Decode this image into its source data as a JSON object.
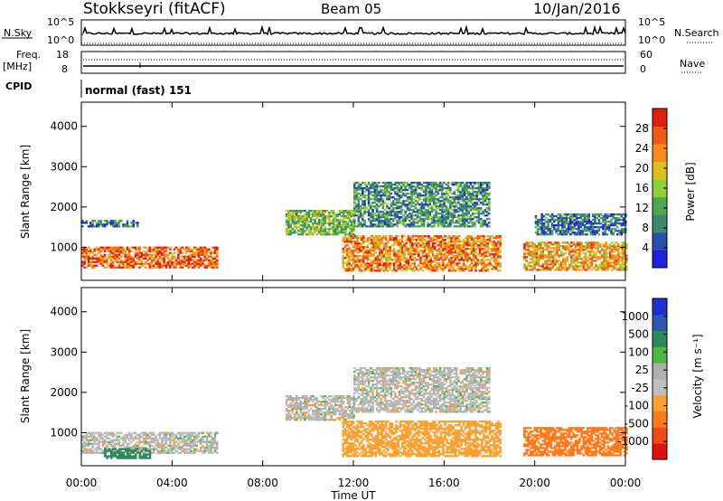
{
  "header": {
    "station": "Stokkseyri (fitACF)",
    "beam": "Beam 05",
    "date": "10/Jan/2016"
  },
  "top_panels": {
    "nsky_label": "N.Sky",
    "nsearch_label": "N.Search",
    "noise_tick_high": "10^5",
    "noise_tick_low": "10^0",
    "freq_label_1": "Freq.",
    "freq_label_2": "[MHz]",
    "freq_tick_high": "18",
    "freq_tick_low": "8",
    "nave_label": "Nave",
    "nave_tick_high": "60",
    "nave_tick_low": "0",
    "cpid_label": "CPID",
    "cpid_value": "normal (fast) 151"
  },
  "colors": {
    "power": [
      "#1f1fe0",
      "#2a4fb0",
      "#3f8a6a",
      "#4fa84f",
      "#8ecf3a",
      "#e0c020",
      "#ff8c1a",
      "#f05a14",
      "#e01e10"
    ],
    "velocity": [
      "#e01010",
      "#f04a14",
      "#ff7a1a",
      "#ffa030",
      "#bebebe",
      "#b0b0b0",
      "#4fb840",
      "#2e8a5a",
      "#2a5ab0",
      "#1f2fd0"
    ]
  },
  "chart_data": [
    {
      "type": "heatmap",
      "title": "Power",
      "ylabel": "Slant Range [km]",
      "xlabel": "",
      "x_ticks": [
        "00:00",
        "04:00",
        "08:00",
        "12:00",
        "16:00",
        "20:00",
        "00:00"
      ],
      "y_ticks": [
        1000,
        2000,
        3000,
        4000
      ],
      "ylim": [
        180,
        4600
      ],
      "xlim_hours": [
        0,
        24
      ],
      "colorbar": {
        "label": "Power [dB]",
        "ticks": [
          4,
          8,
          12,
          16,
          20,
          24,
          28
        ],
        "range": [
          0,
          32
        ]
      },
      "regions": [
        {
          "t": [
            0.0,
            6.0
          ],
          "r": [
            480,
            1020
          ],
          "level": 26
        },
        {
          "t": [
            0.0,
            2.5
          ],
          "r": [
            1500,
            1650
          ],
          "level": 8
        },
        {
          "t": [
            9.0,
            12.0
          ],
          "r": [
            1300,
            1900
          ],
          "level": 14
        },
        {
          "t": [
            11.5,
            18.5
          ],
          "r": [
            400,
            1300
          ],
          "level": 24
        },
        {
          "t": [
            12.0,
            18.0
          ],
          "r": [
            1500,
            2600
          ],
          "level": 10
        },
        {
          "t": [
            19.5,
            24.0
          ],
          "r": [
            420,
            1100
          ],
          "level": 22
        },
        {
          "t": [
            20.0,
            24.0
          ],
          "r": [
            1300,
            1800
          ],
          "level": 8
        }
      ]
    },
    {
      "type": "heatmap",
      "title": "Velocity",
      "ylabel": "Slant Range [km]",
      "xlabel": "Time UT",
      "x_ticks": [
        "00:00",
        "04:00",
        "08:00",
        "12:00",
        "16:00",
        "20:00",
        "00:00"
      ],
      "y_ticks": [
        1000,
        2000,
        3000,
        4000
      ],
      "ylim": [
        180,
        4600
      ],
      "xlim_hours": [
        0,
        24
      ],
      "colorbar": {
        "label": "Velocity [m s⁻¹]",
        "ticks": [
          "1000",
          "500",
          "100",
          "25",
          "-25",
          "-100",
          "-500",
          "-1000"
        ]
      },
      "regions": [
        {
          "t": [
            0.0,
            6.0
          ],
          "r": [
            480,
            1020
          ],
          "level": 0
        },
        {
          "t": [
            1.0,
            3.0
          ],
          "r": [
            350,
            600
          ],
          "level": 150
        },
        {
          "t": [
            9.0,
            12.0
          ],
          "r": [
            1300,
            1900
          ],
          "level": 0
        },
        {
          "t": [
            11.5,
            18.5
          ],
          "r": [
            400,
            1300
          ],
          "level": -60
        },
        {
          "t": [
            12.0,
            18.0
          ],
          "r": [
            1500,
            2600
          ],
          "level": 0
        },
        {
          "t": [
            19.5,
            24.0
          ],
          "r": [
            420,
            1100
          ],
          "level": -200
        }
      ]
    }
  ]
}
